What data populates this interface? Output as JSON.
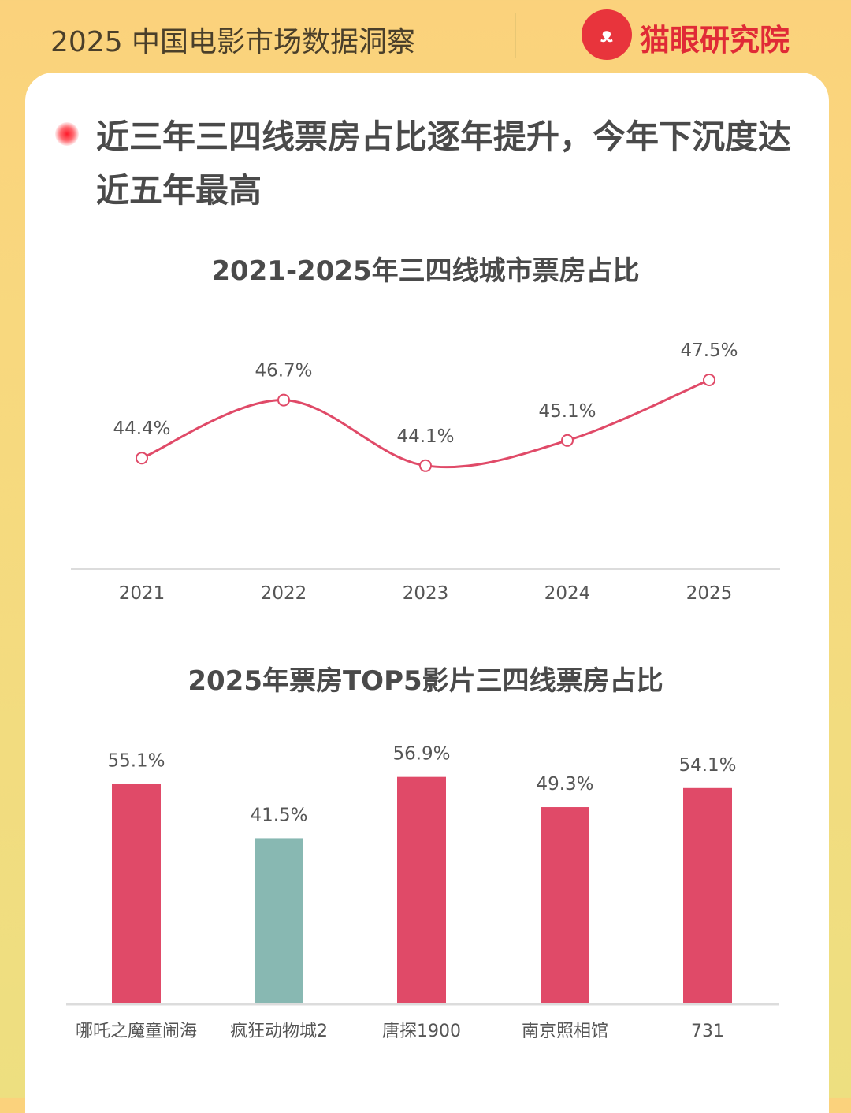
{
  "header": {
    "title": "2025 中国电影市场数据洞察",
    "brand": "猫眼研究院",
    "logo_icon": "cat-face-icon",
    "logo_glyph": "ᴥ"
  },
  "headline": "近三年三四线票房占比逐年提升，今年下沉度达近五年最高",
  "colors": {
    "accent": "#e04a68",
    "teal": "#88b8b2",
    "line": "#e04a68"
  },
  "chart_data": [
    {
      "type": "line",
      "title": "2021-2025年三四线城市票房占比",
      "categories": [
        "2021",
        "2022",
        "2023",
        "2024",
        "2025"
      ],
      "values": [
        44.4,
        46.7,
        44.1,
        45.1,
        47.5
      ],
      "labels": [
        "44.4%",
        "46.7%",
        "44.1%",
        "45.1%",
        "47.5%"
      ],
      "ylim": [
        40,
        50
      ],
      "grid": false,
      "smooth": true
    },
    {
      "type": "bar",
      "title": "2025年票房TOP5影片三四线票房占比",
      "categories": [
        "哪吒之魔童闹海",
        "疯狂动物城2",
        "唐探1900",
        "南京照相馆",
        "731"
      ],
      "values": [
        55.1,
        41.5,
        56.9,
        49.3,
        54.1
      ],
      "labels": [
        "55.1%",
        "41.5%",
        "56.9%",
        "49.3%",
        "54.1%"
      ],
      "bar_colors": [
        "#e04a68",
        "#88b8b2",
        "#e04a68",
        "#e04a68",
        "#e04a68"
      ],
      "ylim": [
        0,
        60
      ],
      "grid": false
    }
  ]
}
